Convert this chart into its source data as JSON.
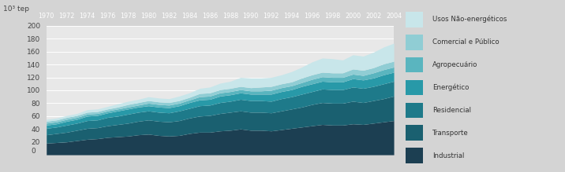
{
  "years": [
    1970,
    1971,
    1972,
    1973,
    1974,
    1975,
    1976,
    1977,
    1978,
    1979,
    1980,
    1981,
    1982,
    1983,
    1984,
    1985,
    1986,
    1987,
    1988,
    1989,
    1990,
    1991,
    1992,
    1993,
    1994,
    1995,
    1996,
    1997,
    1998,
    1999,
    2000,
    2001,
    2002,
    2003,
    2004
  ],
  "series": {
    "Industrial": [
      18,
      19,
      20,
      22,
      24,
      25,
      27,
      28,
      29,
      31,
      32,
      30,
      29,
      30,
      33,
      35,
      35,
      37,
      38,
      40,
      38,
      38,
      37,
      39,
      41,
      43,
      45,
      47,
      46,
      46,
      48,
      47,
      49,
      51,
      53
    ],
    "Transporte": [
      13,
      14,
      15,
      16,
      17,
      17,
      18,
      19,
      20,
      21,
      22,
      22,
      22,
      23,
      24,
      25,
      26,
      27,
      28,
      28,
      28,
      28,
      28,
      29,
      30,
      31,
      33,
      34,
      34,
      34,
      35,
      34,
      35,
      36,
      38
    ],
    "Residencial": [
      10,
      10,
      11,
      11,
      12,
      12,
      13,
      13,
      14,
      14,
      14,
      14,
      14,
      15,
      15,
      16,
      16,
      17,
      17,
      18,
      18,
      18,
      18,
      19,
      19,
      20,
      20,
      21,
      21,
      21,
      22,
      22,
      22,
      23,
      23
    ],
    "Energético": [
      5,
      5,
      6,
      6,
      7,
      7,
      7,
      8,
      8,
      8,
      8,
      8,
      8,
      8,
      9,
      9,
      9,
      10,
      10,
      10,
      10,
      10,
      11,
      11,
      11,
      12,
      12,
      12,
      12,
      12,
      13,
      13,
      13,
      14,
      14
    ],
    "Agropecuário": [
      3,
      3,
      3,
      3,
      3,
      3,
      3,
      3,
      3,
      3,
      4,
      4,
      4,
      4,
      4,
      5,
      5,
      5,
      5,
      5,
      5,
      5,
      6,
      6,
      6,
      6,
      7,
      7,
      7,
      7,
      7,
      7,
      8,
      8,
      8
    ],
    "Comercial e Público": [
      3,
      3,
      3,
      3,
      3,
      3,
      3,
      3,
      4,
      4,
      4,
      4,
      4,
      4,
      4,
      5,
      5,
      5,
      5,
      5,
      5,
      6,
      6,
      6,
      6,
      7,
      7,
      7,
      7,
      7,
      8,
      8,
      8,
      9,
      9
    ],
    "Usos Não-energéticos": [
      3,
      3,
      3,
      3,
      4,
      4,
      4,
      5,
      5,
      5,
      6,
      6,
      6,
      7,
      7,
      8,
      9,
      10,
      11,
      14,
      15,
      14,
      14,
      14,
      16,
      17,
      20,
      22,
      22,
      20,
      22,
      22,
      24,
      26,
      28
    ]
  },
  "colors": {
    "Industrial": "#1c3f52",
    "Transporte": "#1a6070",
    "Residencial": "#1e7a8a",
    "Energético": "#2899a8",
    "Agropecuário": "#5ab5bf",
    "Comercial e Público": "#90cdd4",
    "Usos Não-energéticos": "#c8e6ea"
  },
  "ylabel": "10³ tep",
  "yticks": [
    0,
    20,
    40,
    60,
    80,
    100,
    120,
    140,
    160,
    180,
    200
  ],
  "ylim": [
    0,
    200
  ],
  "xlim": [
    1970,
    2004
  ],
  "plot_bg": "#e8e8e8",
  "fig_bg": "#d4d4d4",
  "header_bg": "#8c9ea8"
}
